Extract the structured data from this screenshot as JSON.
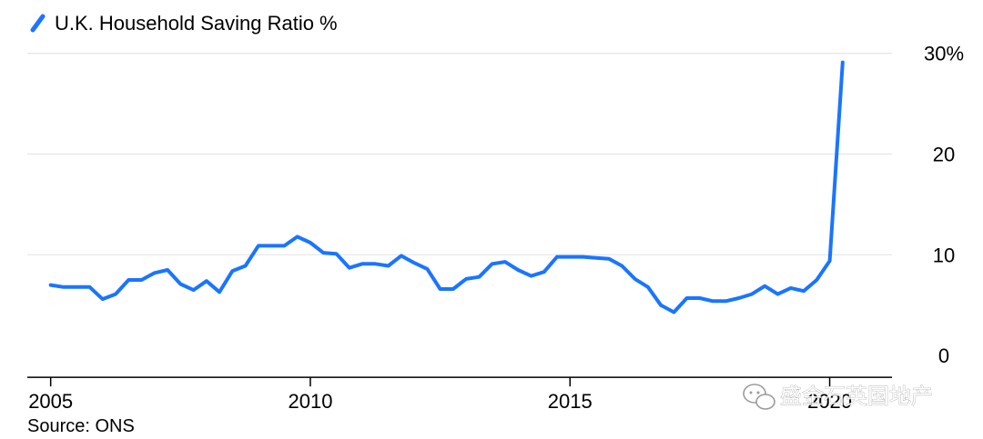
{
  "chart_data": {
    "type": "line",
    "title": "",
    "series": [
      {
        "name": "U.K. Household Saving Ratio %",
        "color": "#1a75ff",
        "points": [
          [
            2005.0,
            7.0
          ],
          [
            2005.25,
            6.8
          ],
          [
            2005.5,
            6.8
          ],
          [
            2005.75,
            6.8
          ],
          [
            2006.0,
            5.6
          ],
          [
            2006.25,
            6.1
          ],
          [
            2006.5,
            7.5
          ],
          [
            2006.75,
            7.5
          ],
          [
            2007.0,
            8.2
          ],
          [
            2007.25,
            8.5
          ],
          [
            2007.5,
            7.1
          ],
          [
            2007.75,
            6.5
          ],
          [
            2008.0,
            7.4
          ],
          [
            2008.25,
            6.3
          ],
          [
            2008.5,
            8.4
          ],
          [
            2008.75,
            8.9
          ],
          [
            2009.0,
            10.9
          ],
          [
            2009.25,
            10.9
          ],
          [
            2009.5,
            10.9
          ],
          [
            2009.75,
            11.8
          ],
          [
            2010.0,
            11.2
          ],
          [
            2010.25,
            10.2
          ],
          [
            2010.5,
            10.1
          ],
          [
            2010.75,
            8.7
          ],
          [
            2011.0,
            9.1
          ],
          [
            2011.25,
            9.1
          ],
          [
            2011.5,
            8.9
          ],
          [
            2011.75,
            9.9
          ],
          [
            2012.0,
            9.2
          ],
          [
            2012.25,
            8.6
          ],
          [
            2012.5,
            6.6
          ],
          [
            2012.75,
            6.6
          ],
          [
            2013.0,
            7.6
          ],
          [
            2013.25,
            7.8
          ],
          [
            2013.5,
            9.1
          ],
          [
            2013.75,
            9.3
          ],
          [
            2014.0,
            8.5
          ],
          [
            2014.25,
            7.9
          ],
          [
            2014.5,
            8.3
          ],
          [
            2014.75,
            9.8
          ],
          [
            2015.0,
            9.8
          ],
          [
            2015.25,
            9.8
          ],
          [
            2015.5,
            9.7
          ],
          [
            2015.75,
            9.6
          ],
          [
            2016.0,
            8.9
          ],
          [
            2016.25,
            7.6
          ],
          [
            2016.5,
            6.8
          ],
          [
            2016.75,
            5.0
          ],
          [
            2017.0,
            4.3
          ],
          [
            2017.25,
            5.7
          ],
          [
            2017.5,
            5.7
          ],
          [
            2017.75,
            5.4
          ],
          [
            2018.0,
            5.4
          ],
          [
            2018.25,
            5.7
          ],
          [
            2018.5,
            6.1
          ],
          [
            2018.75,
            6.9
          ],
          [
            2019.0,
            6.1
          ],
          [
            2019.25,
            6.7
          ],
          [
            2019.5,
            6.4
          ],
          [
            2019.75,
            7.5
          ],
          [
            2020.0,
            9.4
          ],
          [
            2020.25,
            29.1
          ]
        ]
      }
    ],
    "xlim": [
      2004.55,
      2021.55
    ],
    "ylim": [
      -2.6,
      30.6
    ],
    "x_ticks": [
      {
        "value": 2005,
        "label": "2005"
      },
      {
        "value": 2010,
        "label": "2010"
      },
      {
        "value": 2015,
        "label": "2015"
      },
      {
        "value": 2020,
        "label": "2020"
      }
    ],
    "y_ticks": [
      {
        "value": 0,
        "label": "0"
      },
      {
        "value": 10,
        "label": "10"
      },
      {
        "value": 20,
        "label": "20"
      },
      {
        "value": 30,
        "label": "30%"
      }
    ],
    "grid": true,
    "legend_position": "top-left",
    "source": "Source: ONS",
    "watermark": "盛金石英国地产"
  }
}
